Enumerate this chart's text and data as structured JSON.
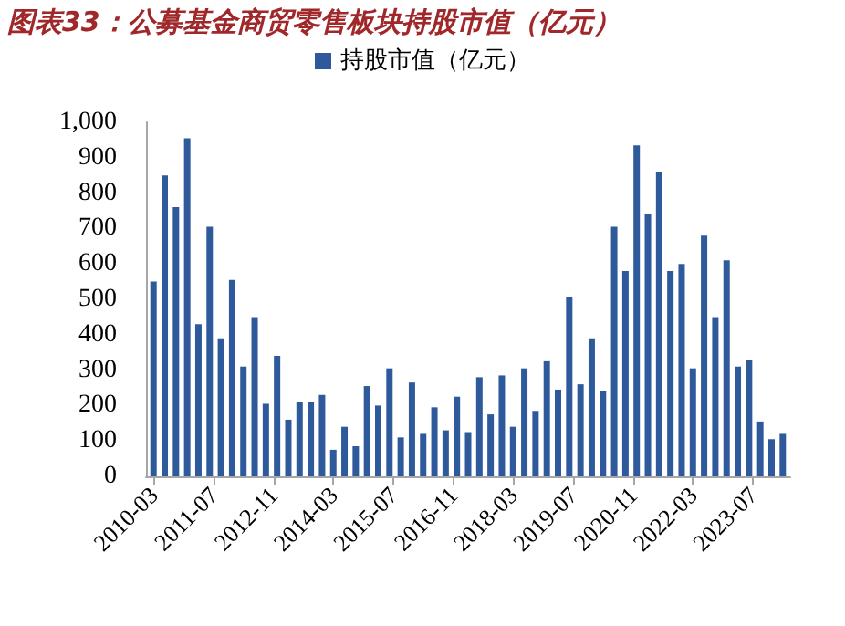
{
  "chart_data": {
    "type": "bar",
    "title": "图表33：公募基金商贸零售板块持股市值（亿元）",
    "x": [
      "2010-03",
      "2010-06",
      "2010-09",
      "2010-12",
      "2011-03",
      "2011-06",
      "2011-09",
      "2011-12",
      "2012-03",
      "2012-06",
      "2012-09",
      "2012-12",
      "2013-03",
      "2013-06",
      "2013-09",
      "2013-12",
      "2014-03",
      "2014-06",
      "2014-09",
      "2014-12",
      "2015-03",
      "2015-06",
      "2015-09",
      "2015-12",
      "2016-03",
      "2016-06",
      "2016-09",
      "2016-12",
      "2017-03",
      "2017-06",
      "2017-09",
      "2017-12",
      "2018-03",
      "2018-06",
      "2018-09",
      "2018-12",
      "2019-03",
      "2019-06",
      "2019-09",
      "2019-12",
      "2020-03",
      "2020-06",
      "2020-09",
      "2020-12",
      "2021-03",
      "2021-06",
      "2021-09",
      "2021-12",
      "2022-03",
      "2022-06",
      "2022-09",
      "2022-12",
      "2023-03",
      "2023-06",
      "2023-09",
      "2023-12",
      "2024-03"
    ],
    "series": [
      {
        "name": "持股市值（亿元）",
        "color": "#2e5a9c",
        "values": [
          550,
          850,
          760,
          955,
          430,
          705,
          390,
          555,
          310,
          450,
          205,
          340,
          160,
          210,
          210,
          230,
          75,
          140,
          85,
          255,
          200,
          305,
          110,
          265,
          120,
          195,
          130,
          225,
          125,
          280,
          175,
          285,
          140,
          305,
          185,
          325,
          245,
          505,
          260,
          390,
          240,
          705,
          580,
          935,
          740,
          860,
          580,
          600,
          305,
          680,
          450,
          610,
          310,
          330,
          155,
          105,
          120
        ]
      }
    ],
    "xlim": [
      "2010-01",
      "2024-05"
    ],
    "xticks": [
      "2010-03",
      "2011-07",
      "2012-11",
      "2014-03",
      "2015-07",
      "2016-11",
      "2018-03",
      "2019-07",
      "2020-11",
      "2022-03",
      "2023-07"
    ],
    "ylim": [
      0,
      1000
    ],
    "yticks": [
      0,
      100,
      200,
      300,
      400,
      500,
      600,
      700,
      800,
      900,
      {
        "value": 1000,
        "label": "1,000"
      }
    ],
    "grid": false,
    "legend": "top"
  }
}
